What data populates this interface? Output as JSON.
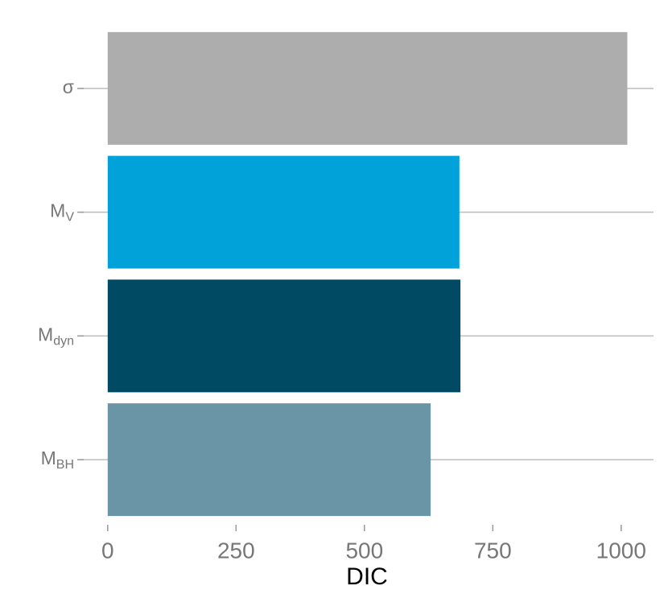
{
  "chart_data": {
    "type": "barh",
    "categories": [
      {
        "text": "σ"
      },
      {
        "text": "M",
        "sub": "V"
      },
      {
        "text": "M",
        "sub": "dyn"
      },
      {
        "text": "M",
        "sub": "BH"
      }
    ],
    "values": [
      1012,
      685,
      687,
      629
    ],
    "colors": [
      "#adadad",
      "#00a2d9",
      "#004b63",
      "#6995a7"
    ],
    "xlabel": "DIC",
    "xlim": [
      -53,
      1063
    ],
    "xticks": [
      0,
      250,
      500,
      750,
      1000
    ],
    "grid": true
  }
}
